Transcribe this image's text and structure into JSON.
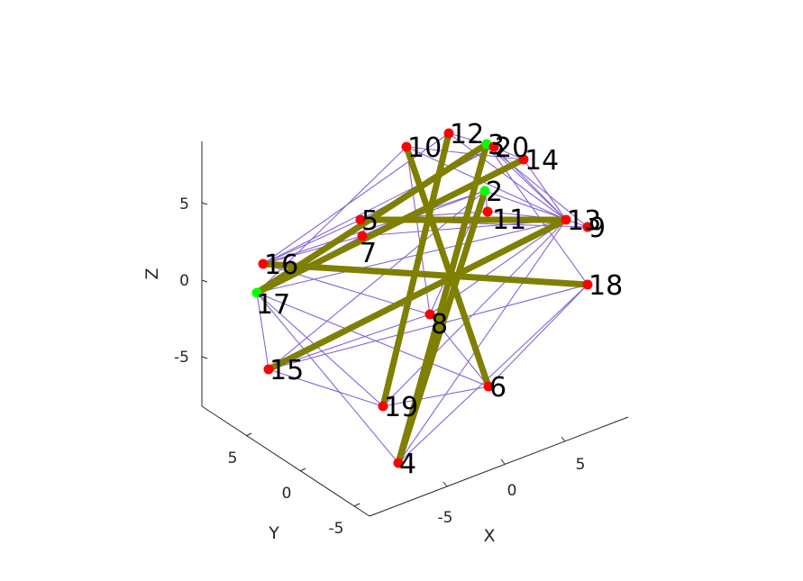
{
  "chart_data": {
    "type": "3d-network-graph",
    "axes": {
      "x": {
        "label": "X",
        "ticks": [
          "-5",
          "0",
          "5"
        ]
      },
      "y": {
        "label": "Y",
        "ticks": [
          "5",
          "0",
          "-5"
        ]
      },
      "z": {
        "label": "Z",
        "ticks": [
          "5",
          "0",
          "-5"
        ]
      }
    },
    "colors": {
      "axis": "#262626",
      "thin_edge": "#8466d6",
      "thick_edge": "#7f7f00",
      "node_default": "#ff0000",
      "node_highlight": "#00ff00"
    },
    "nodes": [
      {
        "id": "2",
        "label": "2",
        "highlight": true
      },
      {
        "id": "3",
        "label": "3",
        "highlight": true
      },
      {
        "id": "4",
        "label": "4",
        "highlight": false
      },
      {
        "id": "5",
        "label": "5",
        "highlight": false
      },
      {
        "id": "6",
        "label": "6",
        "highlight": false
      },
      {
        "id": "7",
        "label": "7",
        "highlight": false
      },
      {
        "id": "8",
        "label": "8",
        "highlight": false
      },
      {
        "id": "9",
        "label": "9",
        "highlight": false
      },
      {
        "id": "10",
        "label": "10",
        "highlight": false
      },
      {
        "id": "11",
        "label": "11",
        "highlight": false
      },
      {
        "id": "12",
        "label": "12",
        "highlight": false
      },
      {
        "id": "13",
        "label": "13",
        "highlight": false
      },
      {
        "id": "14",
        "label": "14",
        "highlight": false
      },
      {
        "id": "15",
        "label": "15",
        "highlight": false
      },
      {
        "id": "16",
        "label": "16",
        "highlight": false
      },
      {
        "id": "17",
        "label": "17",
        "highlight": true
      },
      {
        "id": "18",
        "label": "18",
        "highlight": false
      },
      {
        "id": "19",
        "label": "19",
        "highlight": false
      },
      {
        "id": "20",
        "label": "20",
        "highlight": false
      }
    ],
    "thick_edges": [
      [
        "10",
        "6"
      ],
      [
        "12",
        "19"
      ],
      [
        "3",
        "4"
      ],
      [
        "3",
        "17"
      ],
      [
        "14",
        "17"
      ],
      [
        "16",
        "18"
      ],
      [
        "5",
        "13"
      ],
      [
        "15",
        "13"
      ],
      [
        "2",
        "4"
      ]
    ],
    "thin_edges": [
      [
        "10",
        "17"
      ],
      [
        "10",
        "14"
      ],
      [
        "10",
        "13"
      ],
      [
        "10",
        "8"
      ],
      [
        "12",
        "13"
      ],
      [
        "12",
        "3"
      ],
      [
        "12",
        "16"
      ],
      [
        "3",
        "14"
      ],
      [
        "3",
        "13"
      ],
      [
        "3",
        "9"
      ],
      [
        "3",
        "18"
      ],
      [
        "20",
        "16"
      ],
      [
        "20",
        "13"
      ],
      [
        "20",
        "5"
      ],
      [
        "14",
        "7"
      ],
      [
        "14",
        "13"
      ],
      [
        "2",
        "7"
      ],
      [
        "2",
        "11"
      ],
      [
        "2",
        "8"
      ],
      [
        "2",
        "15"
      ],
      [
        "2",
        "16"
      ],
      [
        "2",
        "9"
      ],
      [
        "11",
        "13"
      ],
      [
        "11",
        "5"
      ],
      [
        "5",
        "16"
      ],
      [
        "5",
        "9"
      ],
      [
        "7",
        "16"
      ],
      [
        "7",
        "17"
      ],
      [
        "7",
        "13"
      ],
      [
        "16",
        "8"
      ],
      [
        "17",
        "15"
      ],
      [
        "17",
        "4"
      ],
      [
        "17",
        "6"
      ],
      [
        "17",
        "19"
      ],
      [
        "17",
        "13"
      ],
      [
        "8",
        "13"
      ],
      [
        "8",
        "15"
      ],
      [
        "8",
        "6"
      ],
      [
        "15",
        "19"
      ],
      [
        "15",
        "18"
      ],
      [
        "19",
        "6"
      ],
      [
        "19",
        "13"
      ],
      [
        "4",
        "18"
      ],
      [
        "4",
        "13"
      ],
      [
        "6",
        "18"
      ]
    ]
  }
}
